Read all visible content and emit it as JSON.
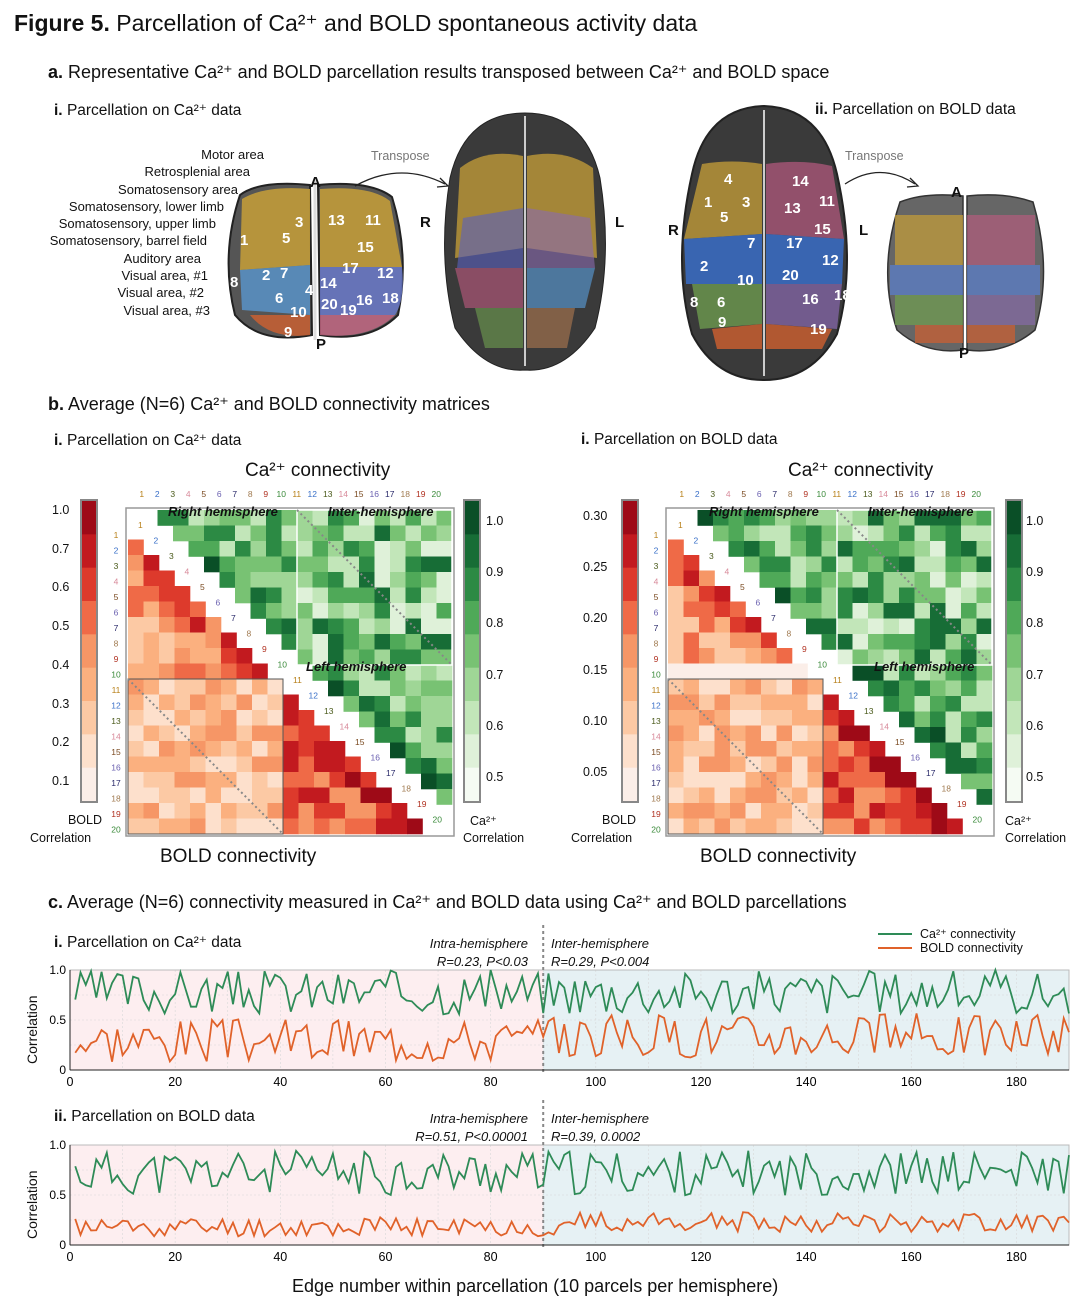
{
  "figure": {
    "label": "Figure 5.",
    "title": "Parcellation of Ca²⁺ and BOLD spontaneous activity data"
  },
  "panel_a": {
    "title_bold": "a.",
    "title": "Representative Ca²⁺ and BOLD parcellation results transposed between Ca²⁺ and BOLD space",
    "i_label": "i.",
    "i_title": "Parcellation on Ca²⁺ data",
    "ii_label": "ii.",
    "ii_title": "Parcellation on BOLD data",
    "transpose": "Transpose",
    "area_labels": [
      "Motor area",
      "Retrosplenial area",
      "Somatosensory area",
      "Somatosensory, lower limb",
      "Somatosensory, upper limb",
      "Somatosensory, barrel field",
      "Auditory area",
      "Visual area, #1",
      "Visual area, #2",
      "Visual area, #3"
    ],
    "orient": {
      "A": "A",
      "P": "P",
      "R": "R",
      "L": "L"
    },
    "parcel_numbers": [
      "1",
      "2",
      "3",
      "4",
      "5",
      "6",
      "7",
      "8",
      "9",
      "10",
      "11",
      "12",
      "13",
      "14",
      "15",
      "16",
      "17",
      "18",
      "19",
      "20"
    ]
  },
  "panel_b": {
    "title_bold": "b.",
    "title": "Average (N=6) Ca²⁺ and BOLD connectivity matrices",
    "i_label": "i.",
    "i_title": "Parcellation on Ca²⁺ data",
    "ii_label": "i.",
    "ii_title": "Parcellation on BOLD data",
    "top_title": "Ca²⁺ connectivity",
    "bottom_title": "BOLD connectivity",
    "right_hemisphere": "Right hemisphere",
    "inter_hemisphere": "Inter-hemisphere",
    "left_hemisphere": "Left hemisphere",
    "bold_corr_label_1": "BOLD",
    "bold_corr_label_2": "Correlation",
    "ca_corr_label_1": "Ca²⁺",
    "ca_corr_label_2": "Correlation",
    "left_ticks_i": [
      "1.0",
      "0.7",
      "0.6",
      "0.5",
      "0.4",
      "0.3",
      "0.2",
      "0.1"
    ],
    "left_ticks_ii": [
      "0.30",
      "0.25",
      "0.20",
      "0.15",
      "0.10",
      "0.05"
    ],
    "right_ticks": [
      "1.0",
      "0.9",
      "0.8",
      "0.7",
      "0.6",
      "0.5"
    ]
  },
  "panel_c": {
    "title_bold": "c.",
    "title": "Average (N=6) connectivity measured in Ca²⁺ and BOLD data using Ca²⁺ and BOLD parcellations",
    "i_label": "i.",
    "i_title": "Parcellation on Ca²⁺ data",
    "ii_label": "ii.",
    "ii_title": "Parcellation on BOLD data",
    "i_intra": "Intra-hemisphere",
    "i_intra_stat": "R=0.23, P<0.03",
    "i_inter": "Inter-hemisphere",
    "i_inter_stat": "R=0.29, P<0.004",
    "ii_intra": "Intra-hemisphere",
    "ii_intra_stat": "R=0.51, P<0.00001",
    "ii_inter": "Inter-hemisphere",
    "ii_inter_stat": "R=0.39, 0.0002",
    "legend_ca": "Ca²⁺ connectivity",
    "legend_bold": "BOLD connectivity",
    "ylabel": "Correlation",
    "xlabel": "Edge number within parcellation (10 parcels per hemisphere)",
    "yticks": [
      "1.0",
      "0.5",
      "0"
    ],
    "xticks": [
      "0",
      "20",
      "40",
      "60",
      "80",
      "100",
      "120",
      "140",
      "160",
      "180"
    ],
    "colors": {
      "ca": "#2e8b57",
      "bold": "#e0622a",
      "intra_bg": "#fdeef0",
      "inter_bg": "#e6f1f4"
    }
  },
  "chart_data": [
    {
      "type": "line",
      "title": "i. Parcellation on Ca²⁺ data",
      "xlabel": "Edge number within parcellation (10 parcels per hemisphere)",
      "ylabel": "Correlation",
      "xlim": [
        0,
        190
      ],
      "ylim": [
        0,
        1.0
      ],
      "series": [
        {
          "name": "Ca²⁺ connectivity",
          "mean_approx": 0.78,
          "range": [
            0.35,
            1.0
          ]
        },
        {
          "name": "BOLD connectivity",
          "mean_approx": 0.3,
          "range": [
            0.02,
            0.65
          ]
        }
      ],
      "annotations": [
        "Intra-hemisphere R=0.23, P<0.03",
        "Inter-hemisphere R=0.29, P<0.004"
      ]
    },
    {
      "type": "line",
      "title": "ii. Parcellation on BOLD data",
      "xlabel": "Edge number within parcellation (10 parcels per hemisphere)",
      "ylabel": "Correlation",
      "xlim": [
        0,
        190
      ],
      "ylim": [
        0,
        1.0
      ],
      "series": [
        {
          "name": "Ca²⁺ connectivity",
          "mean_approx": 0.72,
          "range": [
            0.35,
            0.95
          ]
        },
        {
          "name": "BOLD connectivity",
          "mean_approx": 0.2,
          "range": [
            0.0,
            0.35
          ]
        }
      ],
      "annotations": [
        "Intra-hemisphere R=0.51, P<0.00001",
        "Inter-hemisphere R=0.39, 0.0002"
      ]
    }
  ]
}
